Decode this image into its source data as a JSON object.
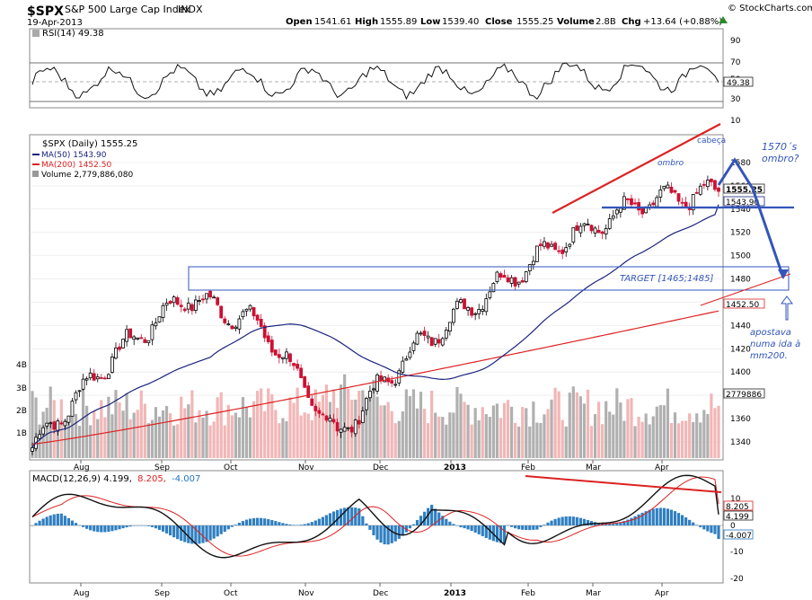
{
  "header": {
    "ticker": "$SPX",
    "name": "S&P 500 Large Cap Index",
    "exchange": "INDX",
    "date": "19-Apr-2013",
    "open_label": "Open",
    "open": "1541.61",
    "high_label": "High",
    "high": "1555.89",
    "low_label": "Low",
    "low": "1539.40",
    "close_label": "Close",
    "close": "1555.25",
    "volume_label": "Volume",
    "volume": "2.8B",
    "chg_label": "Chg",
    "chg": "+13.64 (+0.88%)",
    "brand": "© StockCharts.com"
  },
  "rsi": {
    "label": "RSI(14) 49.38",
    "value_tag": "49.38",
    "ticks": [
      "90",
      "70",
      "50",
      "30",
      "10"
    ]
  },
  "price": {
    "legend_title": "$SPX (Daily) 1555.25",
    "ma50": "MA(50) 1543.90",
    "ma200": "MA(200) 1452.50",
    "volume": "Volume 2,779,886,080",
    "tags": {
      "close": "1555.25",
      "ma50": "1543.90",
      "ma200": "1452.50",
      "volume": "2779886"
    },
    "ticks": [
      "1580",
      "1560",
      "1540",
      "1520",
      "1500",
      "1480",
      "1460",
      "1440",
      "1420",
      "1400",
      "1380",
      "1360",
      "1340"
    ],
    "vol_ticks": [
      "4B",
      "3B",
      "2B",
      "1B"
    ],
    "annotations": {
      "cabeca": "cabeça",
      "ombro_left": "ombro",
      "ombro_right": "1570´s\nombro?",
      "target": "TARGET [1465;1485]",
      "apostava": "apostava\nnuma ida à\nmm200."
    }
  },
  "macd": {
    "label_main": "MACD(12,26,9) 4.199,",
    "label_signal": "8.205,",
    "label_hist": "-4.007",
    "tags": {
      "signal": "8.205",
      "macd": "4.199",
      "hist": "-4.007"
    },
    "ticks": [
      "10",
      "0",
      "-10",
      "-20"
    ]
  },
  "x_axis": [
    "Aug",
    "Sep",
    "Oct",
    "Nov",
    "Dec",
    "2013",
    "Feb",
    "Mar",
    "Apr"
  ],
  "colors": {
    "up": "#000000",
    "down": "#cc1133",
    "ma50": "#1a237e",
    "ma200": "#dd2222",
    "annot": "#3355bb"
  },
  "chart_data": {
    "type": "candlestick",
    "title": "$SPX (Daily) 1555.25",
    "ylim": [
      1330,
      1595
    ],
    "series_anchor": [
      {
        "date": "Jul-2012",
        "close": 1335
      },
      {
        "date": "Aug-2012",
        "close": 1410
      },
      {
        "date": "Sep-2012",
        "close": 1465
      },
      {
        "date": "Oct-2012",
        "close": 1440
      },
      {
        "date": "Nov-2012",
        "close": 1345
      },
      {
        "date": "Dec-2012",
        "close": 1420
      },
      {
        "date": "Jan-2013",
        "close": 1470
      },
      {
        "date": "Feb-2013",
        "close": 1515
      },
      {
        "date": "Mar-2013",
        "close": 1545
      },
      {
        "date": "Apr-2013",
        "close": 1555
      }
    ],
    "ma50_last": 1543.9,
    "ma200_last": 1452.5,
    "target_range": [
      1465,
      1485
    ],
    "macd": {
      "macd": 4.199,
      "signal": 8.205,
      "hist": -4.007
    },
    "rsi": 49.38
  }
}
